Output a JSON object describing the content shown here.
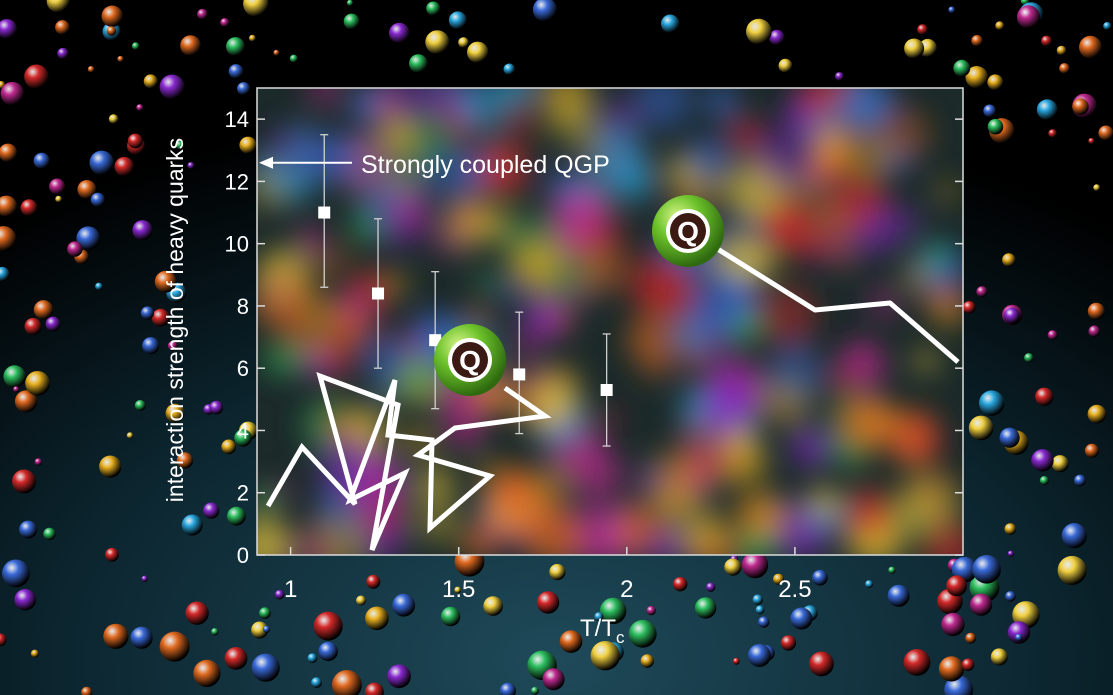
{
  "chart_data": {
    "type": "scatter",
    "xlabel_main": "T/T",
    "xlabel_sub": "c",
    "ylabel": "interaction strength of heavy quarks",
    "xlim": [
      0.9,
      3.0
    ],
    "ylim": [
      0,
      15
    ],
    "x_ticks": [
      1,
      1.5,
      2,
      2.5
    ],
    "x_tick_labels": [
      "1",
      "1.5",
      "2",
      "2.5"
    ],
    "y_ticks": [
      0,
      2,
      4,
      6,
      8,
      10,
      12,
      14
    ],
    "y_tick_labels": [
      "0",
      "2",
      "4",
      "6",
      "8",
      "10",
      "12",
      "14"
    ],
    "points": [
      {
        "x": 1.1,
        "y": 11.0,
        "ylow": 8.6,
        "yhigh": 13.5
      },
      {
        "x": 1.26,
        "y": 8.4,
        "ylow": 6.0,
        "yhigh": 10.8
      },
      {
        "x": 1.43,
        "y": 6.9,
        "ylow": 4.7,
        "yhigh": 9.1
      },
      {
        "x": 1.68,
        "y": 5.8,
        "ylow": 3.9,
        "yhigh": 7.8
      },
      {
        "x": 1.94,
        "y": 5.3,
        "ylow": 3.5,
        "yhigh": 7.1
      }
    ],
    "annotation": {
      "text": "Strongly coupled QGP",
      "y": 12.6
    },
    "quark_label": "Q",
    "colors": {
      "frame": "#dcdcdc",
      "marker": "#ffffff",
      "text": "#ffffff",
      "quark_green": "#5cb82e",
      "quark_core": "#3a1a12"
    }
  }
}
